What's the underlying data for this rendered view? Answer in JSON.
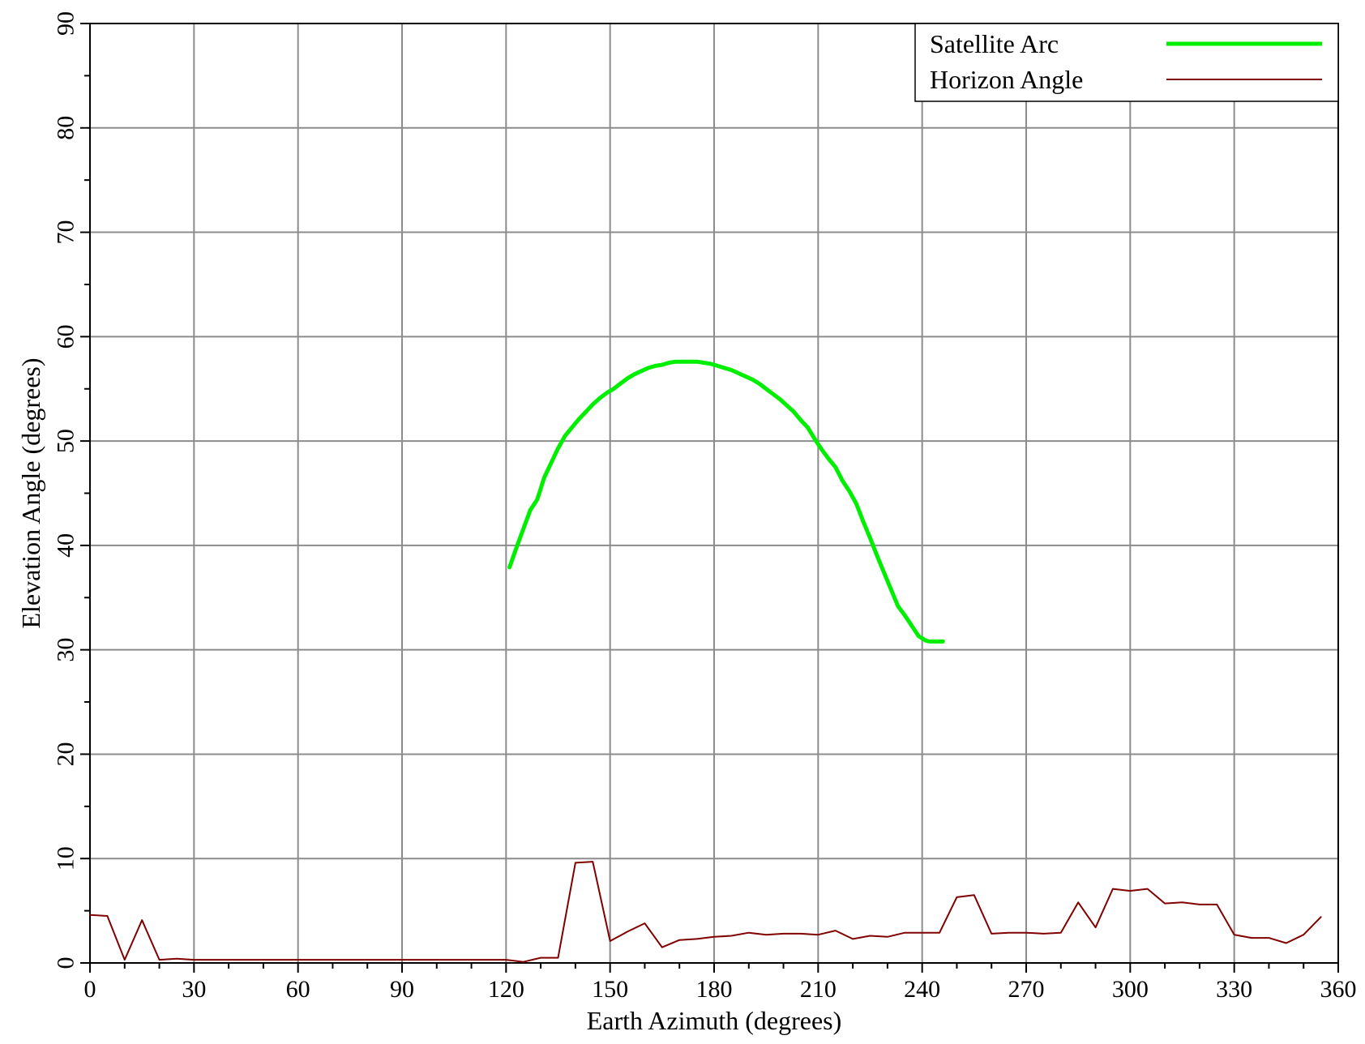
{
  "chart_data": {
    "type": "line",
    "xlabel": "Earth Azimuth (degrees)",
    "ylabel": "Elevation Angle (degrees)",
    "xlim": [
      0,
      360
    ],
    "ylim": [
      0,
      90
    ],
    "xticks": [
      0,
      30,
      60,
      90,
      120,
      150,
      180,
      210,
      240,
      270,
      300,
      330,
      360
    ],
    "yticks": [
      0,
      10,
      20,
      30,
      40,
      50,
      60,
      70,
      80,
      90
    ],
    "grid": true,
    "legend_position": "top-right",
    "series": [
      {
        "name": "Satellite Arc",
        "color": "#00ee00",
        "x": [
          121,
          123,
          125,
          127,
          129,
          131,
          133,
          135,
          137,
          139,
          141,
          143,
          145,
          147,
          149,
          151,
          153,
          155,
          157,
          159,
          161,
          163,
          165,
          167,
          169,
          171,
          173,
          175,
          177,
          179,
          181,
          183,
          185,
          187,
          189,
          191,
          193,
          195,
          197,
          199,
          201,
          203,
          205,
          207,
          209,
          211,
          213,
          215,
          217,
          219,
          221,
          223,
          225,
          227,
          229,
          231,
          233,
          235,
          237,
          239,
          241,
          242,
          244,
          246
        ],
        "y": [
          37.9,
          39.8,
          41.6,
          43.4,
          44.4,
          46.5,
          47.9,
          49.3,
          50.5,
          51.3,
          52.1,
          52.8,
          53.5,
          54.1,
          54.6,
          55.0,
          55.5,
          56.0,
          56.4,
          56.7,
          57.0,
          57.2,
          57.3,
          57.5,
          57.6,
          57.6,
          57.6,
          57.6,
          57.5,
          57.4,
          57.2,
          57.0,
          56.8,
          56.5,
          56.2,
          55.9,
          55.5,
          55.0,
          54.5,
          54.0,
          53.4,
          52.8,
          52.0,
          51.3,
          50.2,
          49.2,
          48.3,
          47.5,
          46.2,
          45.2,
          44.0,
          42.3,
          40.7,
          39.0,
          37.4,
          35.8,
          34.2,
          33.3,
          32.3,
          31.3,
          30.9,
          30.8,
          30.8,
          30.8
        ],
        "width": 5
      },
      {
        "name": "Horizon Angle",
        "color": "#800000",
        "x": [
          0,
          5,
          10,
          15,
          20,
          25,
          30,
          35,
          40,
          45,
          50,
          55,
          60,
          65,
          70,
          75,
          80,
          85,
          90,
          95,
          100,
          105,
          110,
          115,
          120,
          125,
          130,
          135,
          140,
          145,
          150,
          155,
          160,
          165,
          170,
          175,
          180,
          185,
          190,
          195,
          200,
          205,
          210,
          215,
          220,
          225,
          230,
          235,
          240,
          245,
          250,
          255,
          260,
          265,
          270,
          275,
          280,
          285,
          290,
          295,
          300,
          305,
          310,
          315,
          320,
          325,
          330,
          335,
          340,
          345,
          350,
          355
        ],
        "y": [
          4.6,
          4.5,
          0.3,
          4.1,
          0.3,
          0.4,
          0.3,
          0.3,
          0.3,
          0.3,
          0.3,
          0.3,
          0.3,
          0.3,
          0.3,
          0.3,
          0.3,
          0.3,
          0.3,
          0.3,
          0.3,
          0.3,
          0.3,
          0.3,
          0.3,
          0.1,
          0.5,
          0.5,
          9.6,
          9.7,
          2.1,
          3.0,
          3.8,
          1.5,
          2.2,
          2.3,
          2.5,
          2.6,
          2.9,
          2.7,
          2.8,
          2.8,
          2.7,
          3.1,
          2.3,
          2.6,
          2.5,
          2.9,
          2.9,
          2.9,
          6.3,
          6.5,
          2.8,
          2.9,
          2.9,
          2.8,
          2.9,
          5.8,
          3.4,
          7.1,
          6.9,
          7.1,
          5.7,
          5.8,
          5.6,
          5.6,
          2.7,
          2.4,
          2.4,
          1.9,
          2.7,
          4.4
        ],
        "width": 2
      }
    ]
  }
}
